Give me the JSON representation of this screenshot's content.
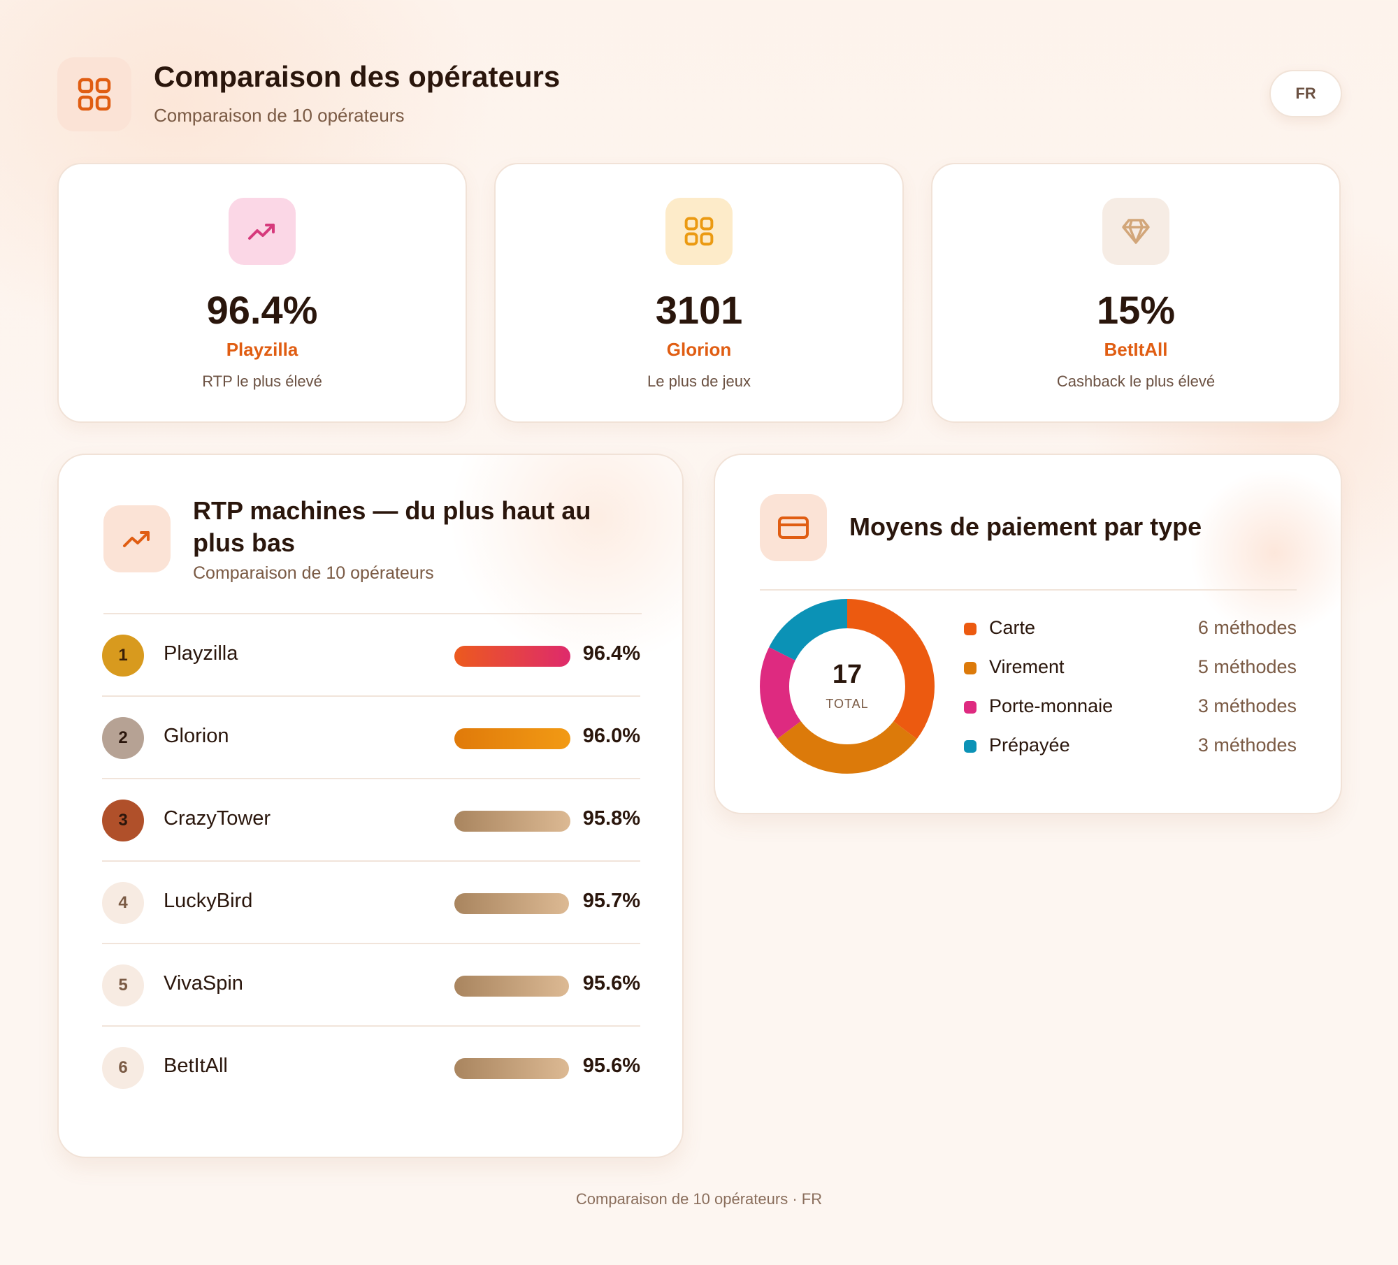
{
  "header": {
    "title": "Comparaison des opérateurs",
    "subtitle": "Comparaison de 10 opérateurs",
    "language": "FR",
    "icon": "grid-icon"
  },
  "stats": [
    {
      "icon": "trending-up-icon",
      "value": "96.4%",
      "operator": "Playzilla",
      "label": "RTP le plus élevé"
    },
    {
      "icon": "grid-icon",
      "value": "3101",
      "operator": "Glorion",
      "label": "Le plus de jeux"
    },
    {
      "icon": "diamond-icon",
      "value": "15%",
      "operator": "BetItAll",
      "label": "Cashback le plus élevé"
    }
  ],
  "rtp_panel": {
    "title": "RTP machines — du plus haut au plus bas",
    "subtitle": "Comparaison de 10 opérateurs",
    "icon": "trending-up-icon",
    "rows": [
      {
        "rank": "1",
        "name": "Playzilla",
        "rtp": "96.4%"
      },
      {
        "rank": "2",
        "name": "Glorion",
        "rtp": "96.0%"
      },
      {
        "rank": "3",
        "name": "CrazyTower",
        "rtp": "95.8%"
      },
      {
        "rank": "4",
        "name": "LuckyBird",
        "rtp": "95.7%"
      },
      {
        "rank": "5",
        "name": "VivaSpin",
        "rtp": "95.6%"
      },
      {
        "rank": "6",
        "name": "BetItAll",
        "rtp": "95.6%"
      }
    ]
  },
  "payment_panel": {
    "title": "Moyens de paiement par type",
    "icon": "credit-card-icon",
    "total_value": "17",
    "total_label": "TOTAL",
    "items": [
      {
        "label": "Carte",
        "count": 6,
        "value_text": "6 méthodes",
        "color": "#ec5a10"
      },
      {
        "label": "Virement",
        "count": 5,
        "value_text": "5 méthodes",
        "color": "#dc7a0a"
      },
      {
        "label": "Porte-monnaie",
        "count": 3,
        "value_text": "3 méthodes",
        "color": "#de2a80"
      },
      {
        "label": "Prépayée",
        "count": 3,
        "value_text": "3 méthodes",
        "color": "#0b92b6"
      }
    ]
  },
  "footer": {
    "text": "Comparaison de 10 opérateurs · FR"
  },
  "colors": {
    "accent": "#e05d12",
    "text_dark": "#2a160c",
    "text_muted": "#7a5a44",
    "rank_gold": "#d89a1e",
    "rank_silver": "#b6a294",
    "rank_bronze": "#b0502a"
  }
}
